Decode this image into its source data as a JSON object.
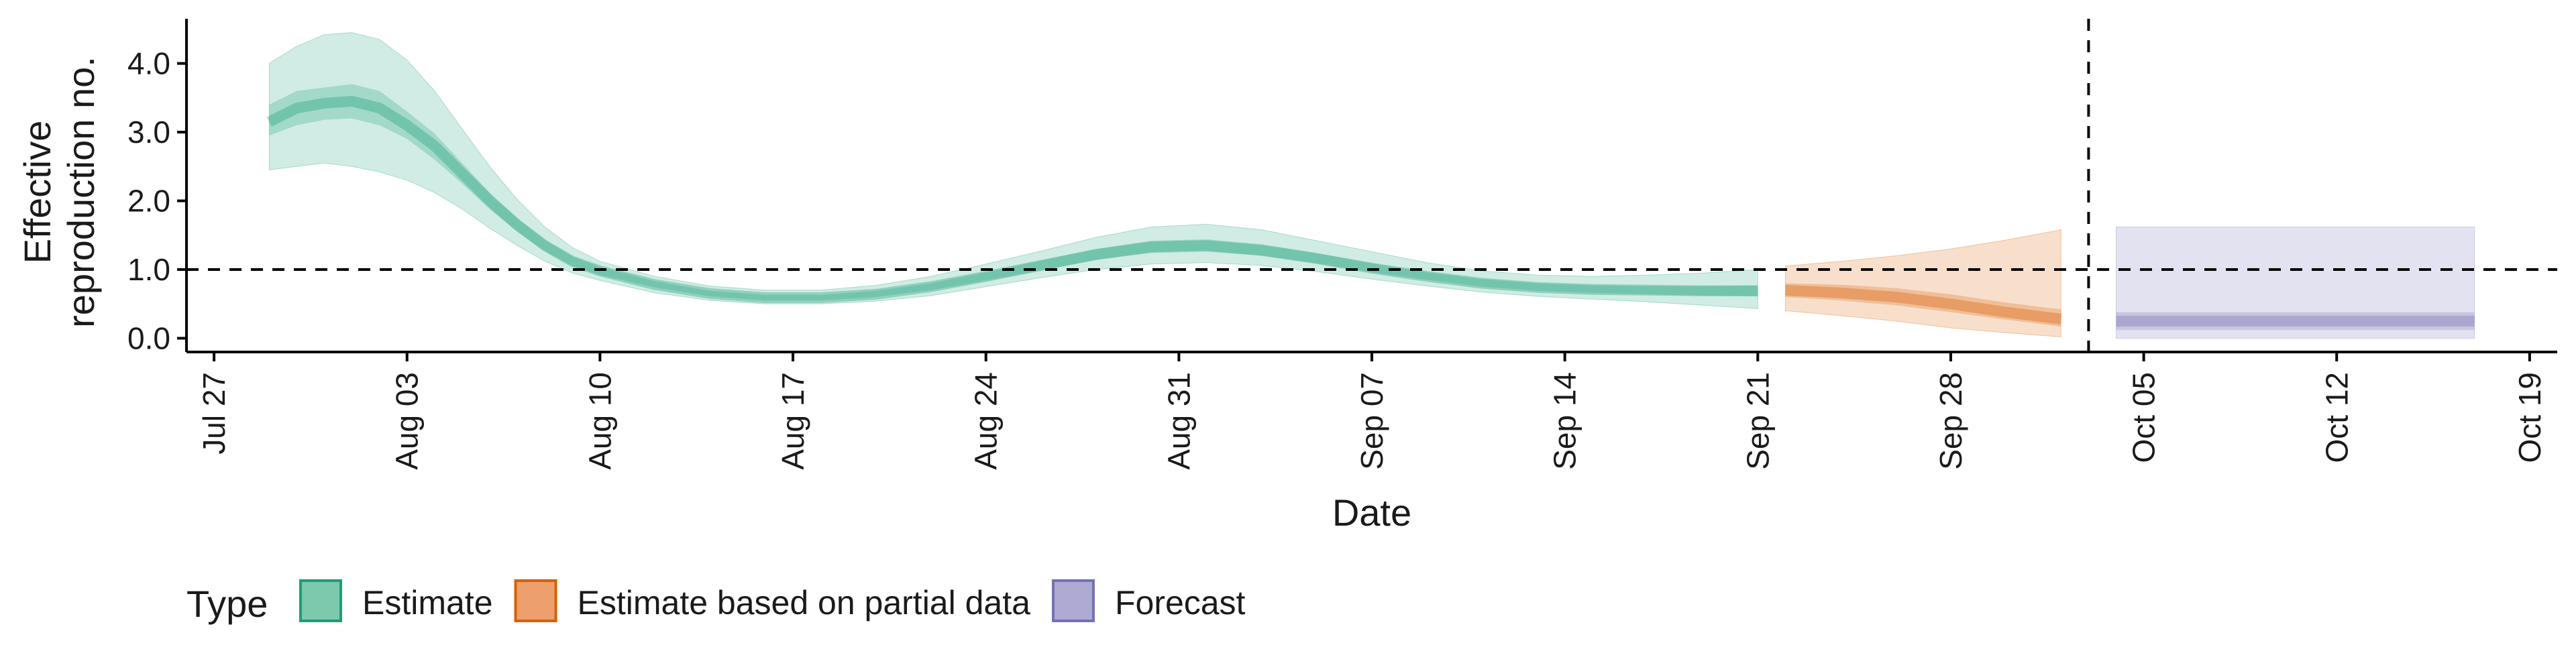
{
  "chart_data": {
    "type": "area",
    "xlabel": "Date",
    "ylabel_lines": [
      "Effective",
      "reproduction no."
    ],
    "x_ticks": [
      "Jul 27",
      "Aug 03",
      "Aug 10",
      "Aug 17",
      "Aug 24",
      "Aug 31",
      "Sep 07",
      "Sep 14",
      "Sep 21",
      "Sep 28",
      "Oct 05",
      "Oct 12",
      "Oct 19"
    ],
    "x_tick_dates": [
      "2020-07-27",
      "2020-08-03",
      "2020-08-10",
      "2020-08-17",
      "2020-08-24",
      "2020-08-31",
      "2020-09-07",
      "2020-09-14",
      "2020-09-21",
      "2020-09-28",
      "2020-10-05",
      "2020-10-12",
      "2020-10-19"
    ],
    "x_range": [
      "2020-07-26",
      "2020-10-20"
    ],
    "y_ticks": [
      "0.0",
      "1.0",
      "2.0",
      "3.0",
      "4.0"
    ],
    "y_tick_values": [
      0,
      1,
      2,
      3,
      4
    ],
    "ylim": [
      -0.2,
      4.65
    ],
    "reference_hline": 1.0,
    "reference_vline": "2020-10-03",
    "legend": {
      "title": "Type",
      "position": "bottom",
      "items": [
        {
          "label": "Estimate",
          "fill": "#7cc9ad",
          "stroke": "#1b9e77"
        },
        {
          "label": "Estimate based on partial data",
          "fill": "#eda06e",
          "stroke": "#d95f02"
        },
        {
          "label": "Forecast",
          "fill": "#aeaad4",
          "stroke": "#7570b3"
        }
      ]
    },
    "series": [
      {
        "name": "Estimate",
        "color": "#1b9e77",
        "points": [
          {
            "date": "2020-07-29",
            "median": 3.15,
            "lo50": 2.95,
            "hi50": 3.4,
            "lo90": 2.45,
            "hi90": 4.0
          },
          {
            "date": "2020-07-30",
            "median": 3.35,
            "lo50": 3.1,
            "hi50": 3.6,
            "lo90": 2.5,
            "hi90": 4.25
          },
          {
            "date": "2020-07-31",
            "median": 3.42,
            "lo50": 3.18,
            "hi50": 3.65,
            "lo90": 2.55,
            "hi90": 4.42
          },
          {
            "date": "2020-08-01",
            "median": 3.45,
            "lo50": 3.2,
            "hi50": 3.7,
            "lo90": 2.5,
            "hi90": 4.45
          },
          {
            "date": "2020-08-02",
            "median": 3.35,
            "lo50": 3.1,
            "hi50": 3.6,
            "lo90": 2.42,
            "hi90": 4.35
          },
          {
            "date": "2020-08-03",
            "median": 3.1,
            "lo50": 2.9,
            "hi50": 3.3,
            "lo90": 2.3,
            "hi90": 4.05
          },
          {
            "date": "2020-08-04",
            "median": 2.8,
            "lo50": 2.6,
            "hi50": 2.98,
            "lo90": 2.12,
            "hi90": 3.6
          },
          {
            "date": "2020-08-05",
            "median": 2.4,
            "lo50": 2.25,
            "hi50": 2.55,
            "lo90": 1.88,
            "hi90": 3.05
          },
          {
            "date": "2020-08-06",
            "median": 2.0,
            "lo50": 1.88,
            "hi50": 2.12,
            "lo90": 1.6,
            "hi90": 2.5
          },
          {
            "date": "2020-08-07",
            "median": 1.65,
            "lo50": 1.55,
            "hi50": 1.75,
            "lo90": 1.35,
            "hi90": 2.02
          },
          {
            "date": "2020-08-08",
            "median": 1.35,
            "lo50": 1.27,
            "hi50": 1.43,
            "lo90": 1.12,
            "hi90": 1.62
          },
          {
            "date": "2020-08-09",
            "median": 1.12,
            "lo50": 1.05,
            "hi50": 1.19,
            "lo90": 0.95,
            "hi90": 1.32
          },
          {
            "date": "2020-08-10",
            "median": 0.98,
            "lo50": 0.92,
            "hi50": 1.04,
            "lo90": 0.84,
            "hi90": 1.12
          },
          {
            "date": "2020-08-12",
            "median": 0.78,
            "lo50": 0.74,
            "hi50": 0.83,
            "lo90": 0.66,
            "hi90": 0.9
          },
          {
            "date": "2020-08-14",
            "median": 0.65,
            "lo50": 0.61,
            "hi50": 0.69,
            "lo90": 0.55,
            "hi90": 0.76
          },
          {
            "date": "2020-08-16",
            "median": 0.59,
            "lo50": 0.55,
            "hi50": 0.63,
            "lo90": 0.5,
            "hi90": 0.7
          },
          {
            "date": "2020-08-18",
            "median": 0.59,
            "lo50": 0.55,
            "hi50": 0.63,
            "lo90": 0.5,
            "hi90": 0.7
          },
          {
            "date": "2020-08-20",
            "median": 0.64,
            "lo50": 0.6,
            "hi50": 0.69,
            "lo90": 0.54,
            "hi90": 0.77
          },
          {
            "date": "2020-08-22",
            "median": 0.75,
            "lo50": 0.7,
            "hi50": 0.8,
            "lo90": 0.62,
            "hi90": 0.9
          },
          {
            "date": "2020-08-24",
            "median": 0.9,
            "lo50": 0.84,
            "hi50": 0.96,
            "lo90": 0.75,
            "hi90": 1.08
          },
          {
            "date": "2020-08-26",
            "median": 1.06,
            "lo50": 0.99,
            "hi50": 1.13,
            "lo90": 0.88,
            "hi90": 1.27
          },
          {
            "date": "2020-08-28",
            "median": 1.22,
            "lo50": 1.14,
            "hi50": 1.3,
            "lo90": 1.0,
            "hi90": 1.47
          },
          {
            "date": "2020-08-30",
            "median": 1.33,
            "lo50": 1.24,
            "hi50": 1.42,
            "lo90": 1.08,
            "hi90": 1.62
          },
          {
            "date": "2020-09-01",
            "median": 1.35,
            "lo50": 1.26,
            "hi50": 1.44,
            "lo90": 1.1,
            "hi90": 1.66
          },
          {
            "date": "2020-09-03",
            "median": 1.28,
            "lo50": 1.2,
            "hi50": 1.37,
            "lo90": 1.06,
            "hi90": 1.58
          },
          {
            "date": "2020-09-05",
            "median": 1.16,
            "lo50": 1.09,
            "hi50": 1.24,
            "lo90": 0.97,
            "hi90": 1.42
          },
          {
            "date": "2020-09-07",
            "median": 1.02,
            "lo50": 0.96,
            "hi50": 1.09,
            "lo90": 0.86,
            "hi90": 1.26
          },
          {
            "date": "2020-09-09",
            "median": 0.9,
            "lo50": 0.85,
            "hi50": 0.96,
            "lo90": 0.76,
            "hi90": 1.1
          },
          {
            "date": "2020-09-11",
            "median": 0.8,
            "lo50": 0.75,
            "hi50": 0.86,
            "lo90": 0.67,
            "hi90": 0.98
          },
          {
            "date": "2020-09-13",
            "median": 0.74,
            "lo50": 0.69,
            "hi50": 0.8,
            "lo90": 0.61,
            "hi90": 0.92
          },
          {
            "date": "2020-09-15",
            "median": 0.71,
            "lo50": 0.66,
            "hi50": 0.77,
            "lo90": 0.57,
            "hi90": 0.9
          },
          {
            "date": "2020-09-17",
            "median": 0.7,
            "lo50": 0.64,
            "hi50": 0.76,
            "lo90": 0.53,
            "hi90": 0.92
          },
          {
            "date": "2020-09-19",
            "median": 0.69,
            "lo50": 0.62,
            "hi50": 0.76,
            "lo90": 0.48,
            "hi90": 0.95
          },
          {
            "date": "2020-09-21",
            "median": 0.69,
            "lo50": 0.61,
            "hi50": 0.77,
            "lo90": 0.43,
            "hi90": 1.0
          }
        ]
      },
      {
        "name": "Estimate based on partial data",
        "color": "#d95f02",
        "points": [
          {
            "date": "2020-09-22",
            "median": 0.7,
            "lo50": 0.6,
            "hi50": 0.8,
            "lo90": 0.4,
            "hi90": 1.05
          },
          {
            "date": "2020-09-24",
            "median": 0.66,
            "lo50": 0.55,
            "hi50": 0.78,
            "lo90": 0.33,
            "hi90": 1.12
          },
          {
            "date": "2020-09-26",
            "median": 0.6,
            "lo50": 0.48,
            "hi50": 0.73,
            "lo90": 0.25,
            "hi90": 1.2
          },
          {
            "date": "2020-09-28",
            "median": 0.5,
            "lo50": 0.38,
            "hi50": 0.64,
            "lo90": 0.15,
            "hi90": 1.3
          },
          {
            "date": "2020-09-30",
            "median": 0.38,
            "lo50": 0.27,
            "hi50": 0.52,
            "lo90": 0.08,
            "hi90": 1.43
          },
          {
            "date": "2020-10-02",
            "median": 0.28,
            "lo50": 0.17,
            "hi50": 0.42,
            "lo90": 0.02,
            "hi90": 1.58
          }
        ]
      },
      {
        "name": "Forecast",
        "color": "#7570b3",
        "points": [
          {
            "date": "2020-10-04",
            "median": 0.25,
            "lo50": 0.12,
            "hi50": 0.38,
            "lo90": 0.0,
            "hi90": 1.62
          },
          {
            "date": "2020-10-17",
            "median": 0.25,
            "lo50": 0.12,
            "hi50": 0.38,
            "lo90": 0.0,
            "hi90": 1.62
          }
        ]
      }
    ]
  }
}
